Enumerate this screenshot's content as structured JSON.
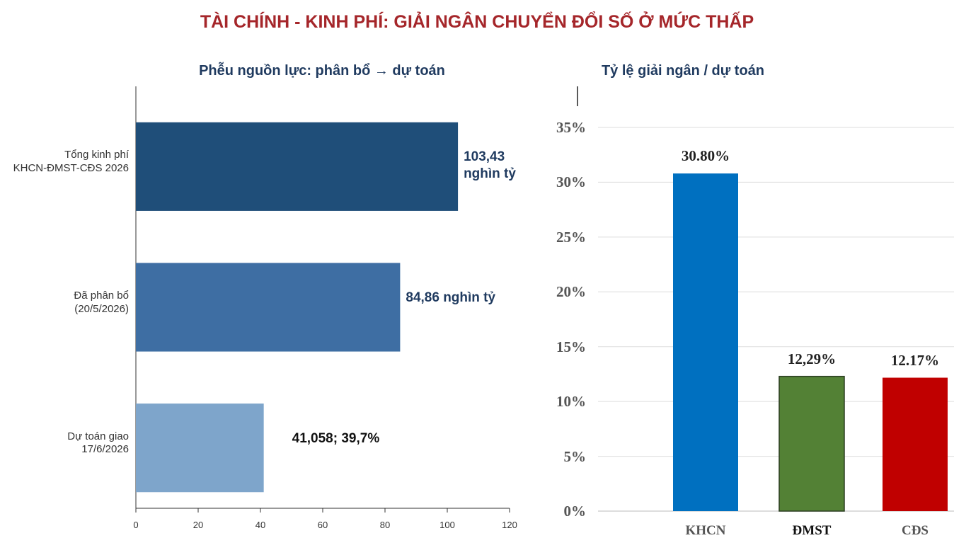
{
  "title": "TÀI CHÍNH - KINH PHÍ: GIẢI NGÂN CHUYỂN ĐỔI SỐ Ở MỨC THẤP",
  "chart_data": [
    {
      "type": "hbar",
      "title": "Phễu nguồn lực: phân bổ → dự toán",
      "categories": [
        "Tổng kinh phí\nKHCN-ĐMST-CĐS 2026",
        "Đã phân bổ\n(20/5/2026)",
        "Dự toán giao\n17/6/2026"
      ],
      "values": [
        103.43,
        84.86,
        41.058
      ],
      "value_labels": [
        "103,43\nnghìn tỷ",
        "84,86 nghìn tỷ",
        "41,058; 39,7%"
      ],
      "colors": [
        "#1f4e79",
        "#3e6ea3",
        "#7ea5cb"
      ],
      "xlim": [
        0,
        120
      ],
      "xticks": [
        0,
        20,
        40,
        60,
        80,
        100,
        120
      ]
    },
    {
      "type": "bar",
      "title": "Tỷ lệ giải ngân / dự toán",
      "categories": [
        "KHCN",
        "ĐMST",
        "CĐS"
      ],
      "values": [
        30.8,
        12.29,
        12.17
      ],
      "value_labels": [
        "30.80%",
        "12,29%",
        "12.17%"
      ],
      "colors": [
        "#0070c0",
        "#538135",
        "#c00000"
      ],
      "ylim": [
        0,
        35
      ],
      "yticks": [
        {
          "value": 0,
          "label": "0%"
        },
        {
          "value": 5,
          "label": "5%"
        },
        {
          "value": 10,
          "label": "10%"
        },
        {
          "value": 15,
          "label": "15%"
        },
        {
          "value": 20,
          "label": "20%"
        },
        {
          "value": 25,
          "label": "25%"
        },
        {
          "value": 30,
          "label": "30%"
        },
        {
          "value": 35,
          "label": "35%"
        }
      ],
      "grid": true
    }
  ]
}
